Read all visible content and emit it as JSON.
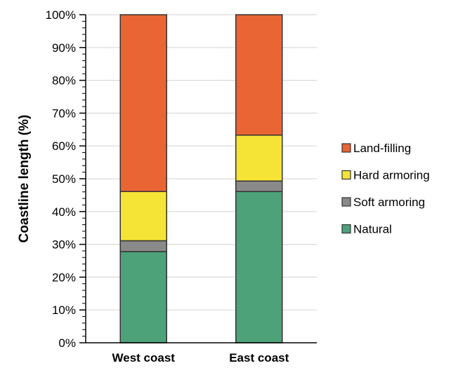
{
  "chart_data": {
    "type": "bar",
    "stacked": true,
    "categories": [
      "West coast",
      "East coast"
    ],
    "series": [
      {
        "name": "Natural",
        "color": "#4ea27a",
        "values": [
          27.8,
          46.1
        ]
      },
      {
        "name": "Soft armoring",
        "color": "#8a8a8a",
        "values": [
          3.3,
          3.2
        ]
      },
      {
        "name": "Hard armoring",
        "color": "#f5e435",
        "values": [
          15.0,
          14.0
        ]
      },
      {
        "name": "Land-filling",
        "color": "#ea6534",
        "values": [
          53.9,
          36.7
        ]
      }
    ],
    "legend_order": [
      "Land-filling",
      "Hard armoring",
      "Soft armoring",
      "Natural"
    ],
    "ylabel": "Coastline length (%)",
    "xlabel": "",
    "ylim": [
      0,
      100
    ],
    "yticks": [
      "0%",
      "10%",
      "20%",
      "30%",
      "40%",
      "50%",
      "60%",
      "70%",
      "80%",
      "90%",
      "100%"
    ],
    "grid": true,
    "legend_position": "right"
  }
}
